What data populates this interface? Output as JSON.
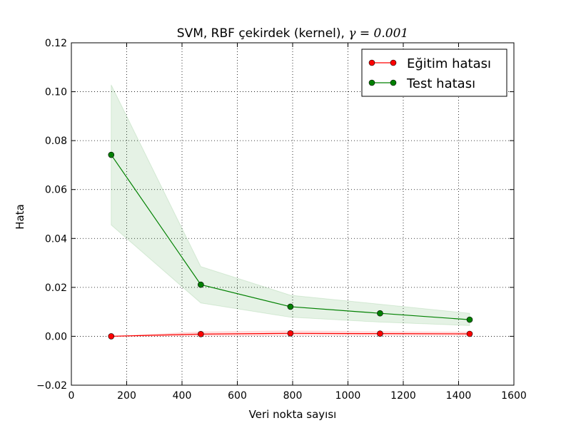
{
  "chart_data": {
    "type": "line",
    "title": "SVM, RBF çekirdek (kernel), ",
    "title_math": "γ = 0.001",
    "xlabel": "Veri nokta sayısı",
    "ylabel": "Hata",
    "xlim": [
      0,
      1600
    ],
    "ylim": [
      -0.02,
      0.12
    ],
    "x_ticks": [
      0,
      200,
      400,
      600,
      800,
      1000,
      1200,
      1400,
      1600
    ],
    "y_ticks": [
      -0.02,
      0.0,
      0.02,
      0.04,
      0.06,
      0.08,
      0.1,
      0.12
    ],
    "x_tick_labels": [
      "0",
      "200",
      "400",
      "600",
      "800",
      "1000",
      "1200",
      "1400",
      "1600"
    ],
    "y_tick_labels": [
      "−0.02",
      "0.00",
      "0.02",
      "0.04",
      "0.06",
      "0.08",
      "0.10",
      "0.12"
    ],
    "grid": true,
    "grid_style": "dotted",
    "legend_position": "top-right",
    "series": [
      {
        "name": "Eğitim hatası",
        "color": "#ff0000",
        "band_color": "#ff0000",
        "x": [
          144,
          468,
          792,
          1116,
          1440
        ],
        "y": [
          0.0,
          0.0009,
          0.0012,
          0.0011,
          0.001
        ],
        "lower": [
          0.0,
          0.0001,
          0.0004,
          0.0004,
          0.0004
        ],
        "upper": [
          0.0,
          0.0018,
          0.0022,
          0.0019,
          0.0017
        ]
      },
      {
        "name": "Test hatası",
        "color": "#008000",
        "band_color": "#008000",
        "x": [
          144,
          468,
          792,
          1116,
          1440
        ],
        "y": [
          0.0742,
          0.0211,
          0.0121,
          0.0094,
          0.0068
        ],
        "lower": [
          0.0455,
          0.0136,
          0.0078,
          0.0058,
          0.0044
        ],
        "upper": [
          0.1028,
          0.0285,
          0.0168,
          0.0131,
          0.0094
        ]
      }
    ]
  }
}
